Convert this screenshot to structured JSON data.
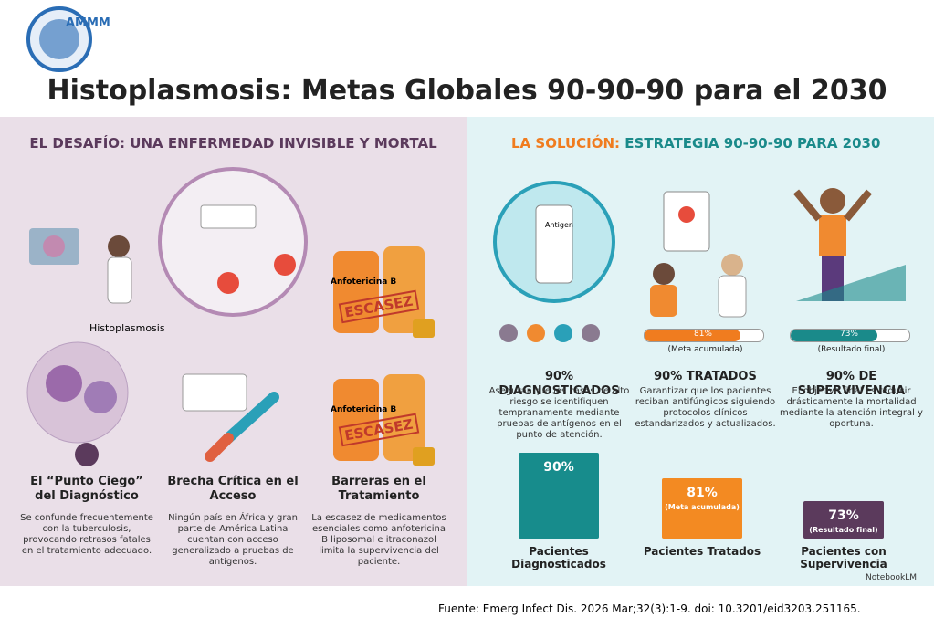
{
  "logo": "AMMM",
  "title": "Histoplasmosis: Metas Globales 90-90-90 para el 2030",
  "left": {
    "heading": "EL DESAFÍO: UNA ENFERMEDAD INVISIBLE Y MORTAL",
    "label": "Histoplasmosis",
    "drug": "Anfotericina B",
    "stamp": "ESCASEZ",
    "items": [
      {
        "title": "El “Punto Ciego” del Diagnóstico",
        "text": "Se confunde frecuentemente con la tuberculosis, provocando retrasos fatales en el tratamiento adecuado."
      },
      {
        "title": "Brecha Crítica en el Acceso",
        "text": "Ningún país en África y gran parte de América Latina cuentan con acceso generalizado a pruebas de antígenos."
      },
      {
        "title": "Barreras en el Tratamiento",
        "text": "La escasez de medicamentos esenciales como anfotericina B liposomal e itraconazol limita la supervivencia del paciente."
      }
    ]
  },
  "right": {
    "heading_a": "LA SOLUCIÓN:",
    "heading_b": "ESTRATEGIA 90-90-90 PARA 2030",
    "test_label": "Antigen",
    "items": [
      {
        "title": "90% DIAGNOSTICADOS",
        "text": "Asegurar que los casos de alto riesgo se identifiquen tempranamente mediante pruebas de antígenos en el punto de atención."
      },
      {
        "title": "90% TRATADOS",
        "progress": 81,
        "progress_label": "81%",
        "note": "(Meta acumulada)",
        "color": "#f07c1f",
        "text": "Garantizar que los pacientes reciban antifúngicos siguiendo protocolos clínicos estandarizados y actualizados."
      },
      {
        "title": "90% DE SUPERVIVENCIA",
        "progress": 73,
        "progress_label": "73%",
        "note": "(Resultado final)",
        "color": "#1a8a8a",
        "text": "El objetivo final es reducir drásticamente la mortalidad mediante la atención integral y oportuna."
      }
    ]
  },
  "chart_data": {
    "type": "bar",
    "categories": [
      "Pacientes Diagnosticados",
      "Pacientes Tratados",
      "Pacientes con Supervivencia"
    ],
    "values": [
      90,
      81,
      73
    ],
    "value_labels": [
      "90%",
      "81%",
      "73%"
    ],
    "notes": [
      null,
      "(Meta acumulada)",
      "(Resultado final)"
    ],
    "colors": [
      "#178c8c",
      "#f38a22",
      "#5b3a5c"
    ],
    "ylim": [
      60,
      95
    ]
  },
  "watermark": "NotebookLM",
  "source": "Fuente: Emerg Infect Dis. 2026 Mar;32(3):1-9. doi: 10.3201/eid3203.251165."
}
